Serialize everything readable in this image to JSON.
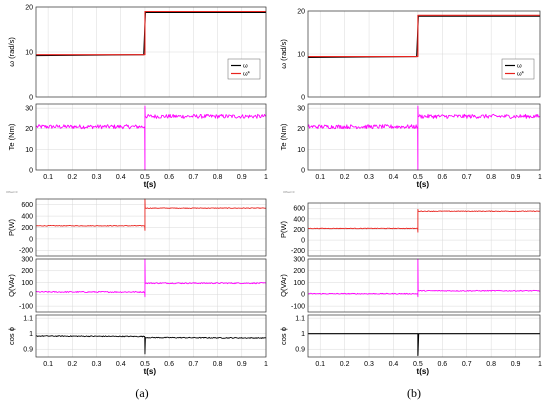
{
  "colors": {
    "speed": "#000000",
    "speed_ref": "#e8231e",
    "torque": "#ff00ff",
    "power": "#e8231e",
    "reactive": "#ff00ff",
    "pf": "#000000",
    "grid": "#d9d9d9"
  },
  "chart_data": [
    {
      "id": "a-speed",
      "type": "line",
      "group": "a",
      "ylabel": "ω (rad/s)",
      "xlim": [
        0.05,
        1
      ],
      "ylim": [
        0,
        20
      ],
      "yticks": [
        "0",
        "10",
        "20"
      ],
      "legend": [
        "ω",
        "ω*"
      ],
      "legend_position": "right",
      "series": [
        {
          "name": "ω",
          "color_key": "speed",
          "x": [
            0.05,
            0.495,
            0.502,
            1.0
          ],
          "y": [
            9.2,
            9.4,
            18.8,
            18.8
          ]
        },
        {
          "name": "ω*",
          "color_key": "speed_ref",
          "x": [
            0.05,
            0.5,
            0.5,
            1.0
          ],
          "y": [
            9.4,
            9.4,
            19.0,
            19.0
          ]
        }
      ]
    },
    {
      "id": "a-torque",
      "type": "line",
      "group": "a",
      "ylabel": "Te (Nm)",
      "xlim": [
        0.05,
        1
      ],
      "ylim": [
        0,
        32
      ],
      "yticks": [
        "0",
        "10",
        "20",
        "30"
      ],
      "xticks": [
        "0.1",
        "0.2",
        "0.3",
        "0.4",
        "0.5",
        "0.6",
        "0.7",
        "0.8",
        "0.9",
        "1"
      ],
      "xlabel": "t(s)",
      "series": [
        {
          "name": "",
          "color_key": "torque",
          "noisy": true,
          "noise": 1.0,
          "x": [
            0.05,
            0.499,
            0.5,
            0.5,
            0.501,
            1.0
          ],
          "y": [
            21,
            21,
            0,
            31,
            26,
            26
          ]
        }
      ]
    },
    {
      "id": "a-power",
      "type": "line",
      "group": "a",
      "ylabel": "P(W)",
      "xlim": [
        0.05,
        1
      ],
      "ylim": [
        -300,
        700
      ],
      "yticks": [
        "-200",
        "0",
        "200",
        "400",
        "600"
      ],
      "series": [
        {
          "name": "",
          "color_key": "power",
          "noisy": true,
          "noise": 6,
          "x": [
            0.05,
            0.499,
            0.5,
            0.5,
            0.501,
            1.0
          ],
          "y": [
            230,
            230,
            150,
            700,
            540,
            540
          ]
        }
      ]
    },
    {
      "id": "a-reactive",
      "type": "line",
      "group": "a",
      "ylabel": "Q(VAr)",
      "xlim": [
        0.05,
        1
      ],
      "ylim": [
        -150,
        300
      ],
      "yticks": [
        "-100",
        "0",
        "100",
        "200",
        "300"
      ],
      "series": [
        {
          "name": "",
          "color_key": "reactive",
          "noisy": true,
          "noise": 5,
          "x": [
            0.05,
            0.499,
            0.5,
            0.5,
            0.501,
            1.0
          ],
          "y": [
            20,
            20,
            -20,
            300,
            95,
            95
          ]
        }
      ]
    },
    {
      "id": "a-pf",
      "type": "line",
      "group": "a",
      "ylabel": "cos ϕ",
      "xlim": [
        0.05,
        1
      ],
      "ylim": [
        0.85,
        1.12
      ],
      "yticks": [
        "0.9",
        "1",
        "1.1"
      ],
      "xticks": [
        "0.1",
        "0.2",
        "0.3",
        "0.4",
        "0.5",
        "0.6",
        "0.7",
        "0.8",
        "0.9",
        "1"
      ],
      "xlabel": "t(s)",
      "series": [
        {
          "name": "",
          "color_key": "pf",
          "noisy": true,
          "noise": 0.003,
          "x": [
            0.05,
            0.499,
            0.5,
            0.5,
            0.502,
            1.0
          ],
          "y": [
            0.985,
            0.982,
            0.87,
            0.87,
            0.975,
            0.972
          ]
        }
      ]
    },
    {
      "id": "b-speed",
      "type": "line",
      "group": "b",
      "ylabel": "ω (rad/s)",
      "xlim": [
        0.05,
        1
      ],
      "ylim": [
        0,
        20
      ],
      "yticks": [
        "0",
        "10",
        "20"
      ],
      "legend": [
        "ω",
        "ω*"
      ],
      "legend_position": "right",
      "series": [
        {
          "name": "ω",
          "color_key": "speed",
          "x": [
            0.05,
            0.495,
            0.502,
            1.0
          ],
          "y": [
            9.2,
            9.4,
            18.8,
            18.8
          ]
        },
        {
          "name": "ω*",
          "color_key": "speed_ref",
          "x": [
            0.05,
            0.5,
            0.5,
            1.0
          ],
          "y": [
            9.4,
            9.4,
            19.0,
            19.0
          ]
        }
      ]
    },
    {
      "id": "b-torque",
      "type": "line",
      "group": "b",
      "ylabel": "Te (Nm)",
      "xlim": [
        0.05,
        1
      ],
      "ylim": [
        0,
        32
      ],
      "yticks": [
        "0",
        "10",
        "20",
        "30"
      ],
      "xticks": [
        "0.1",
        "0.2",
        "0.3",
        "0.4",
        "0.5",
        "0.6",
        "0.7",
        "0.8",
        "0.9",
        "1"
      ],
      "xlabel": "t(s)",
      "series": [
        {
          "name": "",
          "color_key": "torque",
          "noisy": true,
          "noise": 1.0,
          "x": [
            0.05,
            0.499,
            0.5,
            0.5,
            0.501,
            1.0
          ],
          "y": [
            21,
            21,
            0,
            31,
            26,
            26
          ]
        }
      ]
    },
    {
      "id": "b-power",
      "type": "line",
      "group": "b",
      "ylabel": "P(W)",
      "xlim": [
        0.05,
        1
      ],
      "ylim": [
        -300,
        700
      ],
      "yticks": [
        "-200",
        "0",
        "200",
        "400",
        "600"
      ],
      "series": [
        {
          "name": "",
          "color_key": "power",
          "noisy": true,
          "noise": 6,
          "x": [
            0.05,
            0.499,
            0.5,
            0.5,
            0.501,
            1.0
          ],
          "y": [
            220,
            220,
            150,
            580,
            545,
            545
          ]
        }
      ]
    },
    {
      "id": "b-reactive",
      "type": "line",
      "group": "b",
      "ylabel": "Q(VAr)",
      "xlim": [
        0.05,
        1
      ],
      "ylim": [
        -150,
        300
      ],
      "yticks": [
        "-100",
        "0",
        "100",
        "200",
        "300"
      ],
      "series": [
        {
          "name": "",
          "color_key": "reactive",
          "noisy": true,
          "noise": 4,
          "x": [
            0.05,
            0.499,
            0.5,
            0.5,
            0.501,
            1.0
          ],
          "y": [
            5,
            5,
            -20,
            300,
            30,
            30
          ]
        }
      ]
    },
    {
      "id": "b-pf",
      "type": "line",
      "group": "b",
      "ylabel": "cos ϕ",
      "xlim": [
        0.05,
        1
      ],
      "ylim": [
        0.85,
        1.12
      ],
      "yticks": [
        "0.9",
        "1",
        "1.1"
      ],
      "xticks": [
        "0.1",
        "0.2",
        "0.3",
        "0.4",
        "0.5",
        "0.6",
        "0.7",
        "0.8",
        "0.9",
        "1"
      ],
      "xlabel": "t(s)",
      "series": [
        {
          "name": "",
          "color_key": "pf",
          "noisy": false,
          "x": [
            0.05,
            0.5,
            0.5,
            0.5,
            0.503,
            1.0
          ],
          "y": [
            1.0,
            1.0,
            0.86,
            0.86,
            1.0,
            1.0
          ]
        }
      ]
    }
  ],
  "captions": {
    "a": "(a)",
    "b": "(b)"
  },
  "small_labels": {
    "a": "Offset=0",
    "b": "Offset=0"
  }
}
